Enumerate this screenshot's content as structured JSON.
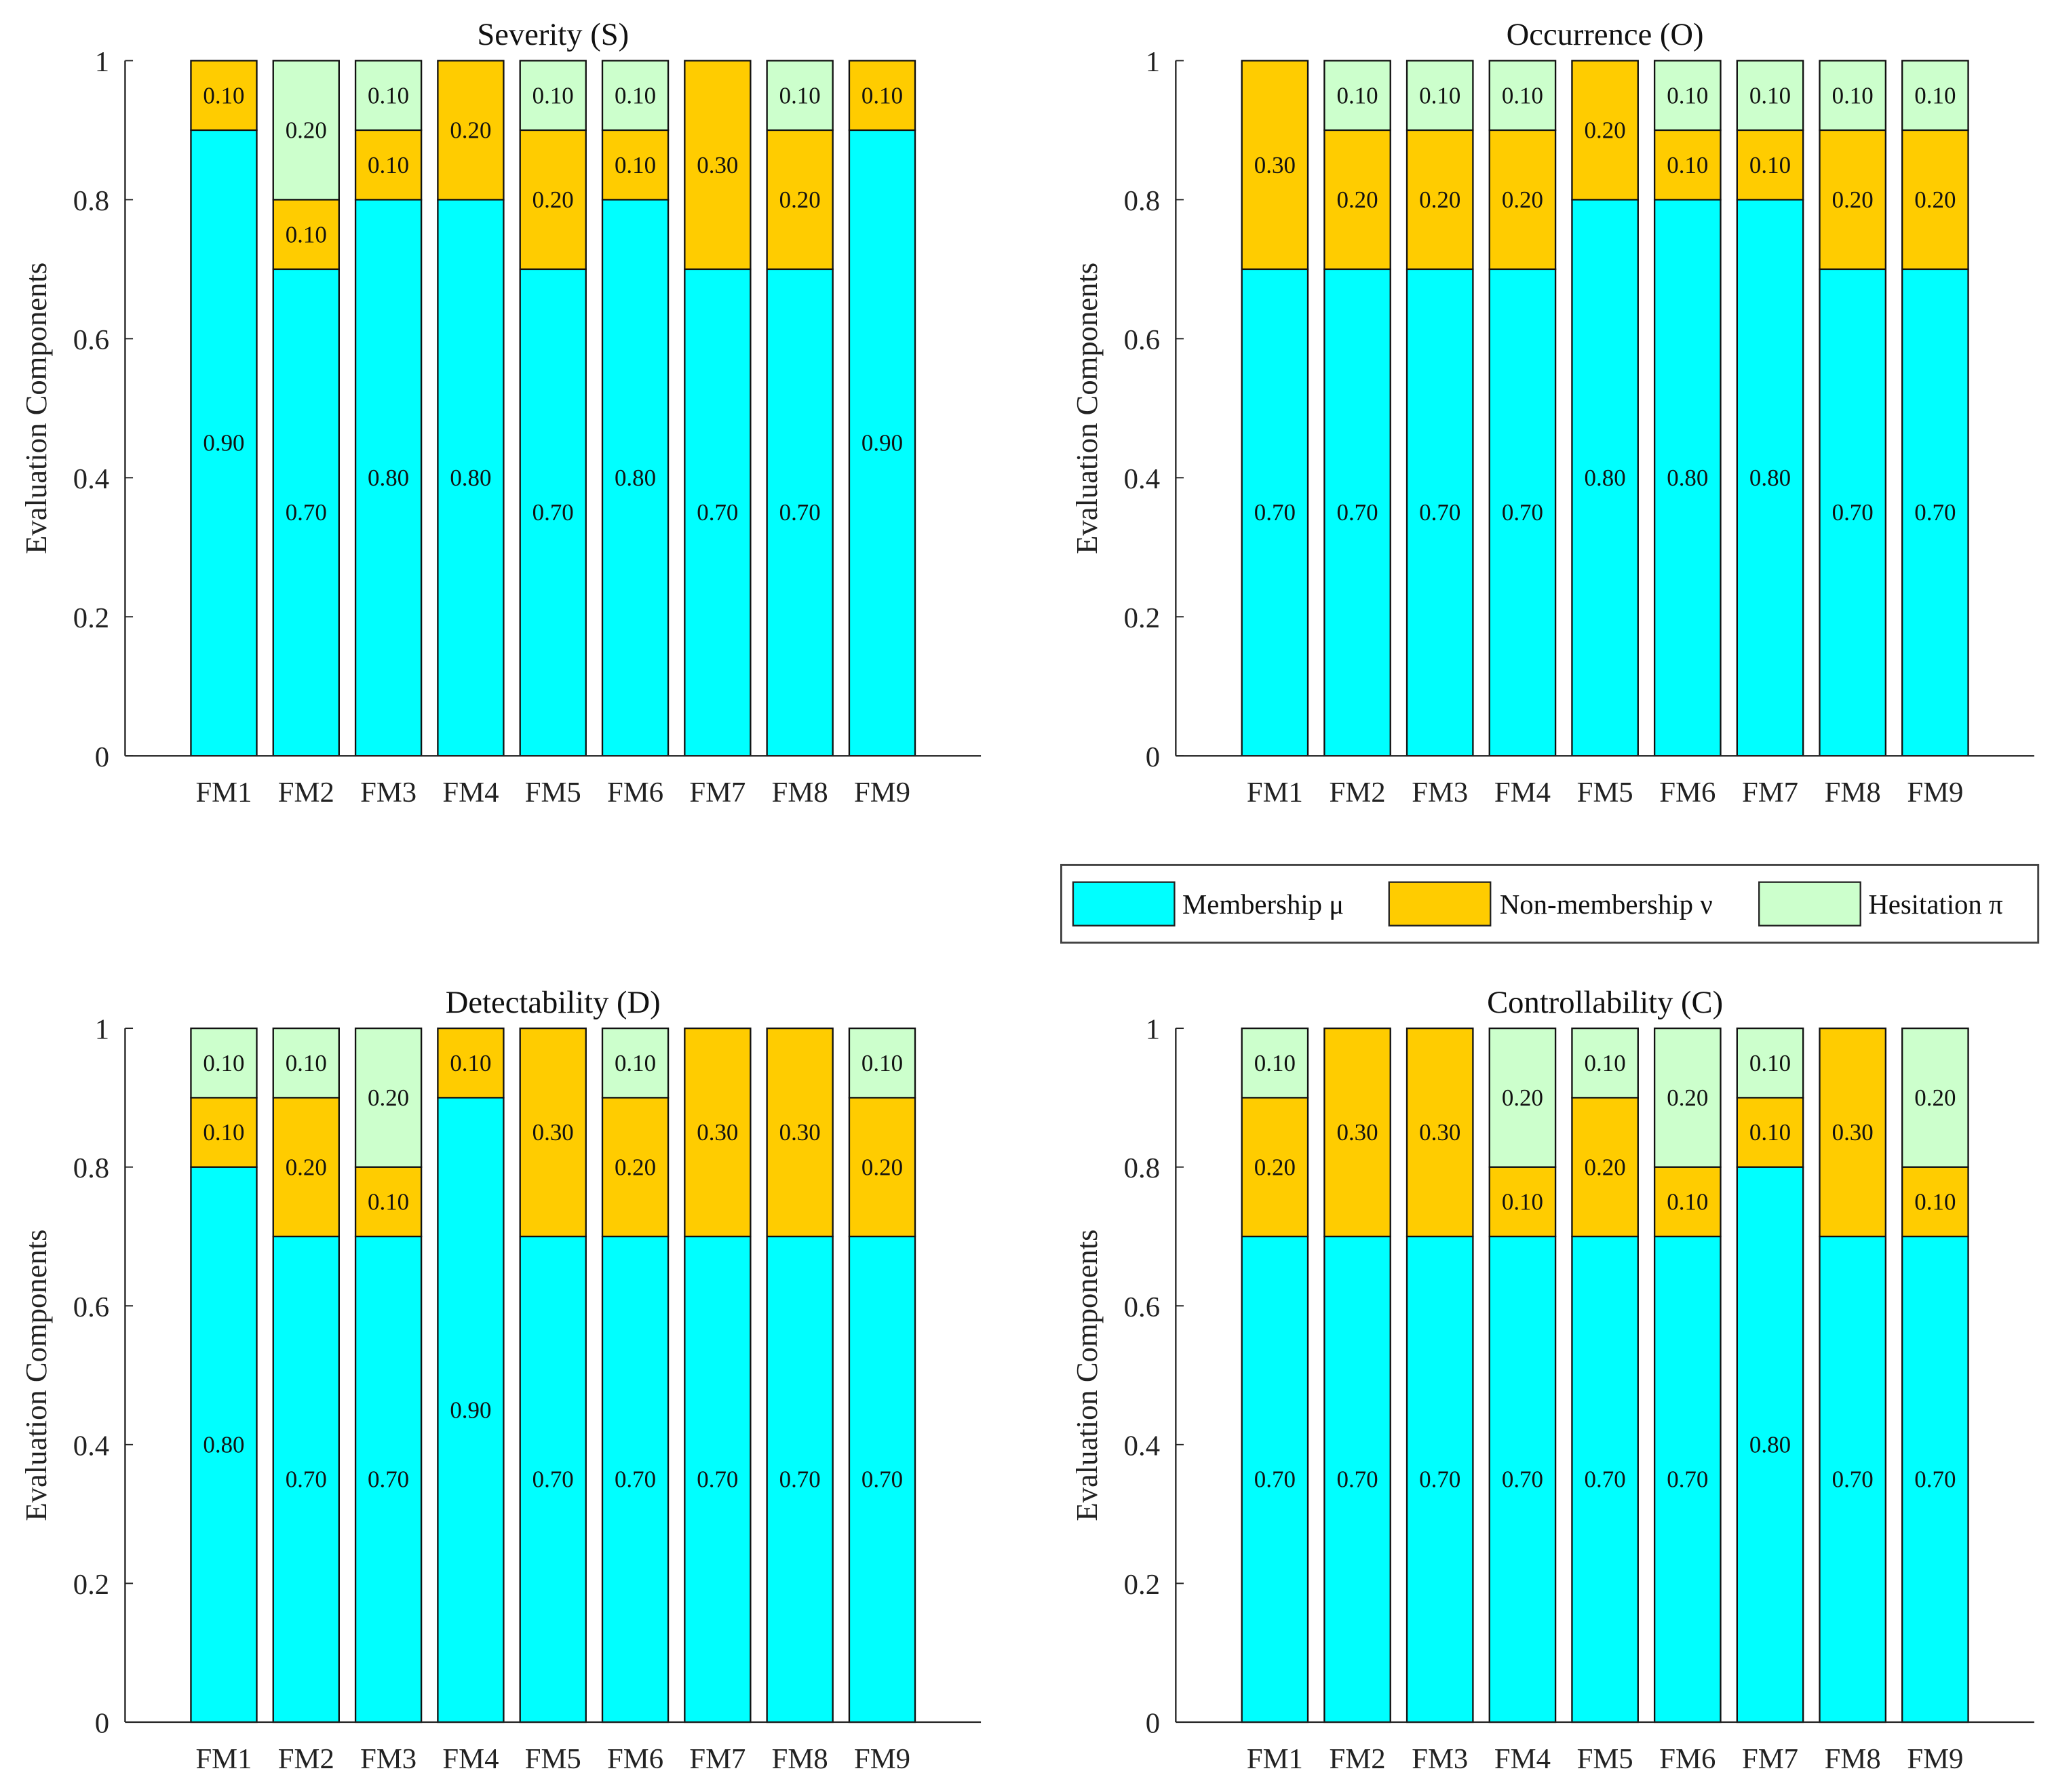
{
  "chart_data": {
    "type": "bar",
    "stacked": true,
    "categories": [
      "FM1",
      "FM2",
      "FM3",
      "FM4",
      "FM5",
      "FM6",
      "FM7",
      "FM8",
      "FM9"
    ],
    "legend": {
      "placement": "center-right, between rows",
      "entries": [
        "Membership μ",
        "Non-membership ν",
        "Hesitation π"
      ]
    },
    "colors": [
      "#00FFFF",
      "#FFCC00",
      "#CCFFCC"
    ],
    "yticks": [
      "0",
      "0.2",
      "0.4",
      "0.6",
      "0.8",
      "1"
    ],
    "panels": [
      {
        "title": "Severity (S)",
        "ylabel": "Evaluation Components",
        "ylim": [
          0,
          1
        ],
        "series": [
          {
            "name": "Membership μ",
            "values": [
              0.9,
              0.7,
              0.8,
              0.8,
              0.7,
              0.8,
              0.7,
              0.7,
              0.9
            ]
          },
          {
            "name": "Non-membership ν",
            "values": [
              0.1,
              0.1,
              0.1,
              0.2,
              0.2,
              0.1,
              0.3,
              0.2,
              0.1
            ]
          },
          {
            "name": "Hesitation π",
            "values": [
              0,
              0.2,
              0.1,
              0,
              0.1,
              0.1,
              0,
              0.1,
              0
            ]
          }
        ]
      },
      {
        "title": "Occurrence (O)",
        "ylabel": "Evaluation Components",
        "ylim": [
          0,
          1
        ],
        "series": [
          {
            "name": "Membership μ",
            "values": [
              0.7,
              0.7,
              0.7,
              0.7,
              0.8,
              0.8,
              0.8,
              0.7,
              0.7
            ]
          },
          {
            "name": "Non-membership ν",
            "values": [
              0.3,
              0.2,
              0.2,
              0.2,
              0.2,
              0.1,
              0.1,
              0.2,
              0.2
            ]
          },
          {
            "name": "Hesitation π",
            "values": [
              0,
              0.1,
              0.1,
              0.1,
              0,
              0.1,
              0.1,
              0.1,
              0.1
            ]
          }
        ]
      },
      {
        "title": "Detectability (D)",
        "ylabel": "Evaluation Components",
        "ylim": [
          0,
          1
        ],
        "series": [
          {
            "name": "Membership μ",
            "values": [
              0.8,
              0.7,
              0.7,
              0.9,
              0.7,
              0.7,
              0.7,
              0.7,
              0.7
            ]
          },
          {
            "name": "Non-membership ν",
            "values": [
              0.1,
              0.2,
              0.1,
              0.1,
              0.3,
              0.2,
              0.3,
              0.3,
              0.2
            ]
          },
          {
            "name": "Hesitation π",
            "values": [
              0.1,
              0.1,
              0.2,
              0,
              0,
              0.1,
              0,
              0,
              0.1
            ]
          }
        ]
      },
      {
        "title": "Controllability (C)",
        "ylabel": "Evaluation Components",
        "ylim": [
          0,
          1
        ],
        "series": [
          {
            "name": "Membership μ",
            "values": [
              0.7,
              0.7,
              0.7,
              0.7,
              0.7,
              0.7,
              0.8,
              0.7,
              0.7
            ]
          },
          {
            "name": "Non-membership ν",
            "values": [
              0.2,
              0.3,
              0.3,
              0.1,
              0.2,
              0.1,
              0.1,
              0.3,
              0.1
            ]
          },
          {
            "name": "Hesitation π",
            "values": [
              0.1,
              0,
              0,
              0.2,
              0.1,
              0.2,
              0.1,
              0,
              0.2
            ]
          }
        ]
      }
    ]
  }
}
